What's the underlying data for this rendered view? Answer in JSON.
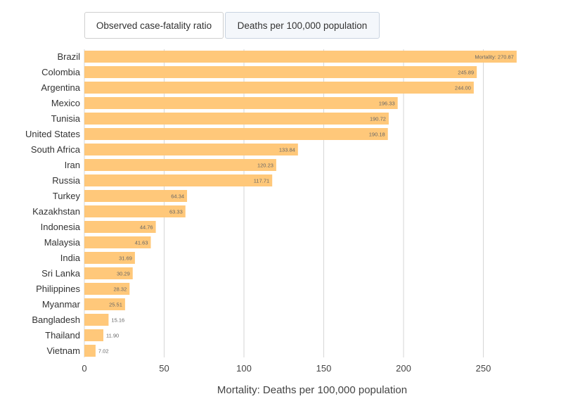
{
  "tabs": [
    {
      "label": "Observed case-fatality ratio",
      "active": false
    },
    {
      "label": "Deaths per 100,000 population",
      "active": true
    }
  ],
  "chart_data": {
    "type": "bar",
    "orientation": "horizontal",
    "title": "",
    "xlabel": "Mortality: Deaths per 100,000 population",
    "ylabel": "",
    "xlim": [
      0,
      270.87
    ],
    "xticks": [
      0,
      50,
      100,
      150,
      200,
      250
    ],
    "grid": true,
    "bar_color": "#ffc87a",
    "first_label_prefix": "Mortality: ",
    "categories": [
      "Brazil",
      "Colombia",
      "Argentina",
      "Mexico",
      "Tunisia",
      "United States",
      "South Africa",
      "Iran",
      "Russia",
      "Turkey",
      "Kazakhstan",
      "Indonesia",
      "Malaysia",
      "India",
      "Sri Lanka",
      "Philippines",
      "Myanmar",
      "Bangladesh",
      "Thailand",
      "Vietnam"
    ],
    "values": [
      270.87,
      245.89,
      244.0,
      196.33,
      190.72,
      190.18,
      133.84,
      120.23,
      117.71,
      64.34,
      63.33,
      44.76,
      41.63,
      31.69,
      30.29,
      28.32,
      25.51,
      15.16,
      11.9,
      7.02
    ]
  }
}
